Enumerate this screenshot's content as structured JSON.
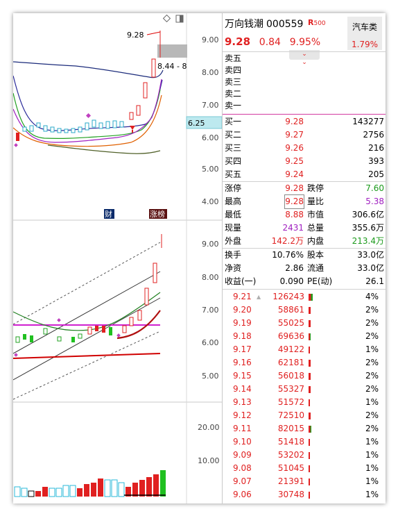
{
  "stock": {
    "name": "万向钱潮",
    "code": "000559",
    "r_badge": "R",
    "r_sub": "500",
    "price": "9.28",
    "change": "0.84",
    "change_pct": "9.95%",
    "sector_name": "汽车类",
    "sector_pct": "1.79%"
  },
  "sell_levels": [
    {
      "label": "卖五"
    },
    {
      "label": "卖四"
    },
    {
      "label": "卖三"
    },
    {
      "label": "卖二"
    },
    {
      "label": "卖一"
    }
  ],
  "buy_levels": [
    {
      "label": "买一",
      "price": "9.28",
      "volume": "143277"
    },
    {
      "label": "买二",
      "price": "9.27",
      "volume": "2756"
    },
    {
      "label": "买三",
      "price": "9.26",
      "volume": "216"
    },
    {
      "label": "买四",
      "price": "9.25",
      "volume": "393"
    },
    {
      "label": "买五",
      "price": "9.24",
      "volume": "205"
    }
  ],
  "stats": [
    {
      "l1": "涨停",
      "v1": "9.28",
      "c1": "red",
      "l2": "跌停",
      "v2": "7.60",
      "c2": "green"
    },
    {
      "l1": "最高",
      "v1": "9.28",
      "c1": "red",
      "l2": "量比",
      "v2": "5.38",
      "c2": "pur"
    },
    {
      "l1": "最低",
      "v1": "8.88",
      "c1": "red",
      "l2": "市值",
      "v2": "306.6亿",
      "c2": ""
    },
    {
      "l1": "现量",
      "v1": "2431",
      "c1": "pur",
      "l2": "总量",
      "v2": "355.6万",
      "c2": ""
    },
    {
      "l1": "外盘",
      "v1": "142.2万",
      "c1": "red",
      "l2": "内盘",
      "v2": "213.4万",
      "c2": "green"
    }
  ],
  "fundamentals": [
    {
      "l1": "换手",
      "v1": "10.76%",
      "l2": "股本",
      "v2": "33.0亿"
    },
    {
      "l1": "净资",
      "v1": "2.86",
      "l2": "流通",
      "v2": "33.0亿"
    },
    {
      "l1": "收益(一)",
      "v1": "0.090",
      "l2": "PE(动)",
      "v2": "26.1"
    }
  ],
  "ladder": [
    {
      "price": "9.21",
      "volume": "126243",
      "pct": "4%",
      "bar": 0.05
    },
    {
      "price": "9.20",
      "volume": "58861",
      "pct": "2%",
      "bar": 0.025
    },
    {
      "price": "9.19",
      "volume": "55025",
      "pct": "2%",
      "bar": 0.022
    },
    {
      "price": "9.18",
      "volume": "69636",
      "pct": "2%",
      "bar": 0.028
    },
    {
      "price": "9.17",
      "volume": "49122",
      "pct": "1%",
      "bar": 0.02
    },
    {
      "price": "9.16",
      "volume": "62181",
      "pct": "2%",
      "bar": 0.025
    },
    {
      "price": "9.15",
      "volume": "56018",
      "pct": "2%",
      "bar": 0.022
    },
    {
      "price": "9.14",
      "volume": "55327",
      "pct": "2%",
      "bar": 0.022
    },
    {
      "price": "9.13",
      "volume": "51572",
      "pct": "1%",
      "bar": 0.02
    },
    {
      "price": "9.12",
      "volume": "72510",
      "pct": "2%",
      "bar": 0.028
    },
    {
      "price": "9.11",
      "volume": "82015",
      "pct": "2%",
      "bar": 0.032
    },
    {
      "price": "9.10",
      "volume": "51418",
      "pct": "1%",
      "bar": 0.02
    },
    {
      "price": "9.09",
      "volume": "53202",
      "pct": "1%",
      "bar": 0.02
    },
    {
      "price": "9.08",
      "volume": "51045",
      "pct": "1%",
      "bar": 0.02
    },
    {
      "price": "9.07",
      "volume": "21391",
      "pct": "1%",
      "bar": 0.01
    },
    {
      "price": "9.06",
      "volume": "30748",
      "pct": "1%",
      "bar": 0.012
    }
  ],
  "chart": {
    "top_axis": [
      "9.00",
      "8.00",
      "7.00",
      "6.00",
      "5.00",
      "4.00"
    ],
    "mid_axis": [
      "9.00",
      "8.00",
      "7.00",
      "6.00",
      "5.00"
    ],
    "vol_axis": [
      "20.00",
      "10.00"
    ],
    "high_label": "9.28",
    "low_label": "8.44 - 8",
    "cursor_price": "6.25",
    "tag_fin": "财",
    "tag_zhang": "涨榜",
    "colors": {
      "up": "#e02020",
      "down": "#10c010",
      "ma5": "#20a020",
      "ma10": "#a020c0",
      "ma20": "#1a2a7a"
    }
  }
}
